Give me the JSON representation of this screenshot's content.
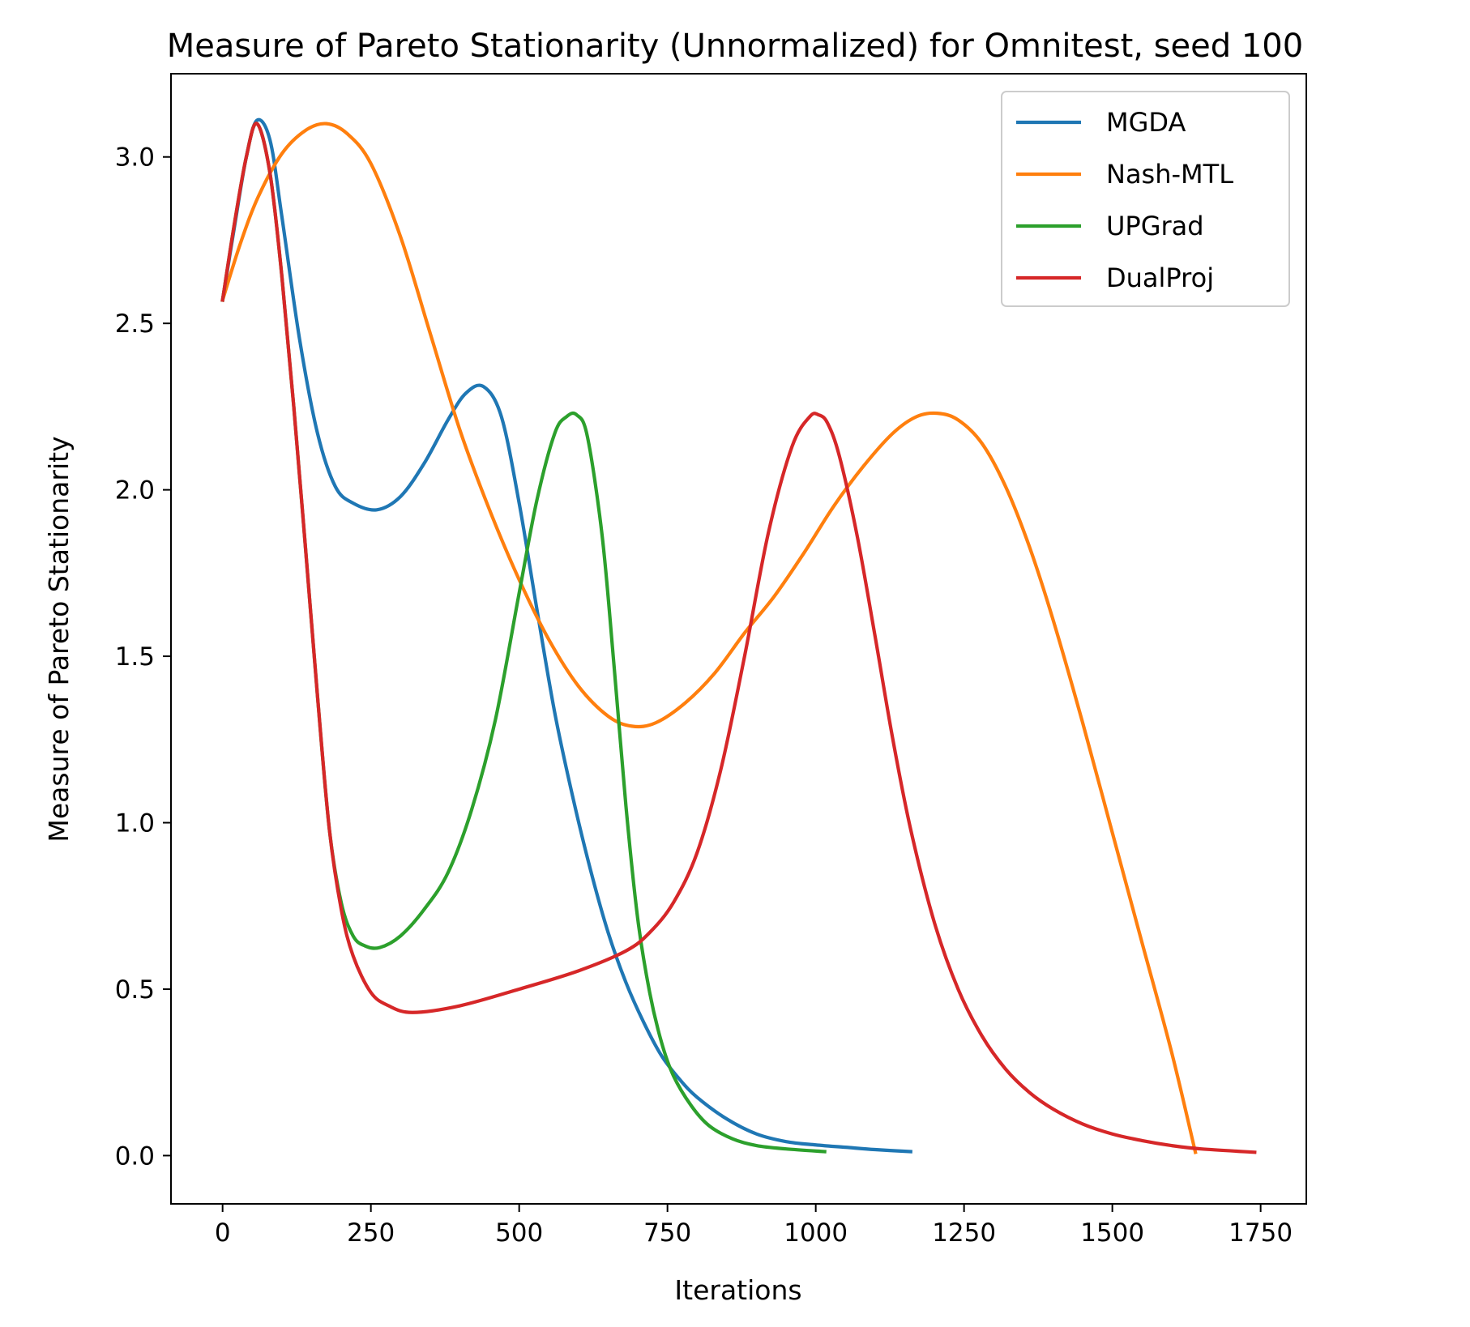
{
  "chart_data": {
    "type": "line",
    "title": "Measure of Pareto Stationarity (Unnormalized) for Omnitest, seed 100",
    "xlabel": "Iterations",
    "ylabel": "Measure of Pareto Stationarity",
    "xlim": [
      -87,
      1827
    ],
    "ylim": [
      -0.145,
      3.25
    ],
    "xticks": [
      0,
      250,
      500,
      750,
      1000,
      1250,
      1500,
      1750
    ],
    "xtick_labels": [
      "0",
      "250",
      "500",
      "750",
      "1000",
      "1250",
      "1500",
      "1750"
    ],
    "yticks": [
      0.0,
      0.5,
      1.0,
      1.5,
      2.0,
      2.5,
      3.0
    ],
    "ytick_labels": [
      "0.0",
      "0.5",
      "1.0",
      "1.5",
      "2.0",
      "2.5",
      "3.0"
    ],
    "grid": false,
    "legend_position": "upper right",
    "series": [
      {
        "name": "MGDA",
        "color": "#1f77b4",
        "x": [
          0,
          20,
          40,
          58,
          80,
          100,
          130,
          160,
          190,
          220,
          260,
          300,
          340,
          380,
          410,
          440,
          470,
          500,
          530,
          560,
          590,
          620,
          650,
          680,
          710,
          740,
          770,
          800,
          850,
          900,
          950,
          1000,
          1050,
          1100,
          1160
        ],
        "y": [
          2.57,
          2.79,
          3.0,
          3.11,
          3.05,
          2.82,
          2.45,
          2.17,
          2.01,
          1.96,
          1.94,
          1.98,
          2.08,
          2.21,
          2.29,
          2.31,
          2.22,
          1.96,
          1.64,
          1.33,
          1.08,
          0.86,
          0.67,
          0.52,
          0.4,
          0.3,
          0.23,
          0.175,
          0.11,
          0.065,
          0.042,
          0.032,
          0.025,
          0.018,
          0.012
        ]
      },
      {
        "name": "Nash-MTL",
        "color": "#ff7f0e",
        "x": [
          0,
          30,
          60,
          100,
          140,
          175,
          210,
          250,
          300,
          350,
          400,
          450,
          500,
          550,
          600,
          650,
          690,
          730,
          780,
          830,
          880,
          930,
          980,
          1030,
          1080,
          1130,
          1170,
          1205,
          1240,
          1280,
          1320,
          1360,
          1400,
          1450,
          1500,
          1550,
          1600,
          1640
        ],
        "y": [
          2.57,
          2.74,
          2.88,
          3.01,
          3.08,
          3.1,
          3.07,
          2.98,
          2.76,
          2.47,
          2.18,
          1.94,
          1.73,
          1.55,
          1.41,
          1.32,
          1.29,
          1.3,
          1.36,
          1.45,
          1.57,
          1.68,
          1.81,
          1.95,
          2.07,
          2.17,
          2.22,
          2.23,
          2.21,
          2.14,
          2.01,
          1.83,
          1.61,
          1.3,
          0.97,
          0.64,
          0.31,
          0.01
        ]
      },
      {
        "name": "UPGrad",
        "color": "#2ca02c",
        "x": [
          0,
          20,
          40,
          58,
          80,
          100,
          120,
          140,
          160,
          180,
          200,
          220,
          240,
          265,
          300,
          340,
          380,
          420,
          460,
          500,
          530,
          560,
          580,
          597,
          615,
          640,
          660,
          680,
          700,
          720,
          740,
          760,
          790,
          820,
          860,
          900,
          950,
          1015
        ],
        "y": [
          2.57,
          2.8,
          3.0,
          3.1,
          2.95,
          2.64,
          2.25,
          1.82,
          1.38,
          0.98,
          0.76,
          0.66,
          0.63,
          0.625,
          0.66,
          0.74,
          0.85,
          1.04,
          1.31,
          1.69,
          1.97,
          2.17,
          2.22,
          2.225,
          2.16,
          1.86,
          1.47,
          1.05,
          0.71,
          0.49,
          0.34,
          0.24,
          0.15,
          0.09,
          0.05,
          0.03,
          0.02,
          0.012
        ]
      },
      {
        "name": "DualProj",
        "color": "#d62728",
        "x": [
          0,
          20,
          40,
          58,
          80,
          100,
          120,
          140,
          160,
          180,
          200,
          220,
          250,
          280,
          320,
          400,
          500,
          600,
          680,
          720,
          760,
          800,
          840,
          880,
          920,
          960,
          990,
          1005,
          1020,
          1040,
          1070,
          1100,
          1130,
          1160,
          1200,
          1240,
          1280,
          1320,
          1360,
          1400,
          1450,
          1500,
          1550,
          1600,
          1650,
          1740
        ],
        "y": [
          2.57,
          2.8,
          3.0,
          3.1,
          2.95,
          2.64,
          2.25,
          1.82,
          1.38,
          0.98,
          0.74,
          0.6,
          0.49,
          0.45,
          0.43,
          0.45,
          0.5,
          0.555,
          0.615,
          0.67,
          0.76,
          0.91,
          1.16,
          1.5,
          1.87,
          2.13,
          2.22,
          2.225,
          2.2,
          2.1,
          1.86,
          1.56,
          1.25,
          0.98,
          0.7,
          0.5,
          0.36,
          0.26,
          0.19,
          0.14,
          0.095,
          0.065,
          0.045,
          0.03,
          0.02,
          0.01
        ]
      }
    ]
  }
}
